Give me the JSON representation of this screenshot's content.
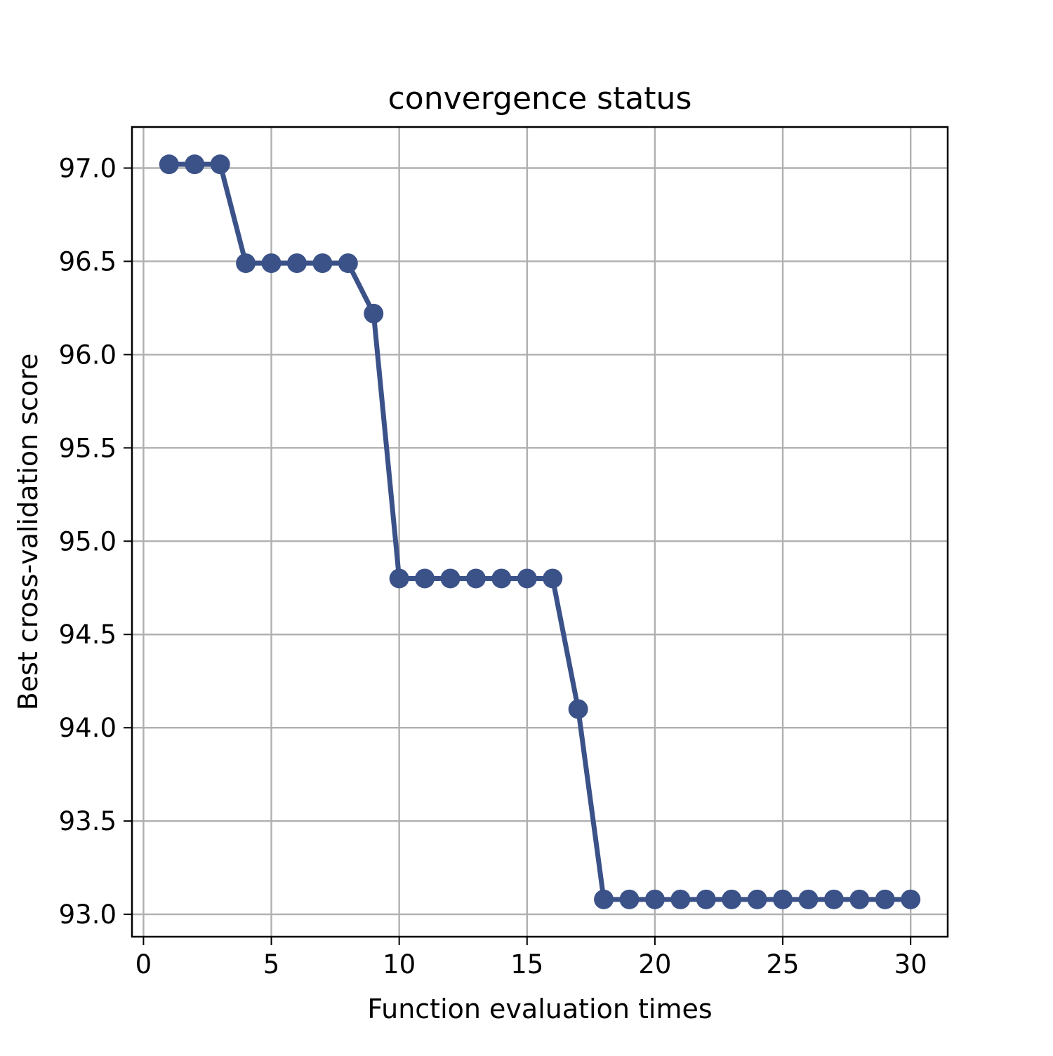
{
  "chart_data": {
    "type": "line",
    "title": "convergence status",
    "xlabel": "Function evaluation times",
    "ylabel": "Best cross-validation score",
    "xlim": [
      -0.45,
      31.45
    ],
    "ylim": [
      92.88,
      97.22
    ],
    "xticks": [
      0,
      5,
      10,
      15,
      20,
      25,
      30
    ],
    "xtick_labels": [
      "0",
      "5",
      "10",
      "15",
      "20",
      "25",
      "30"
    ],
    "yticks": [
      93.0,
      93.5,
      94.0,
      94.5,
      95.0,
      95.5,
      96.0,
      96.5,
      97.0
    ],
    "ytick_labels": [
      "93.0",
      "93.5",
      "94.0",
      "94.5",
      "95.0",
      "95.5",
      "96.0",
      "96.5",
      "97.0"
    ],
    "grid": true,
    "legend": "none",
    "series": [
      {
        "color": "#3b5289",
        "marker": "circle",
        "x": [
          1,
          2,
          3,
          4,
          5,
          6,
          7,
          8,
          9,
          10,
          11,
          12,
          13,
          14,
          15,
          16,
          17,
          18,
          19,
          20,
          21,
          22,
          23,
          24,
          25,
          26,
          27,
          28,
          29,
          30
        ],
        "y": [
          97.02,
          97.02,
          97.02,
          96.49,
          96.49,
          96.49,
          96.49,
          96.49,
          96.22,
          94.8,
          94.8,
          94.8,
          94.8,
          94.8,
          94.8,
          94.8,
          94.1,
          93.08,
          93.08,
          93.08,
          93.08,
          93.08,
          93.08,
          93.08,
          93.08,
          93.08,
          93.08,
          93.08,
          93.08,
          93.08
        ]
      }
    ]
  }
}
